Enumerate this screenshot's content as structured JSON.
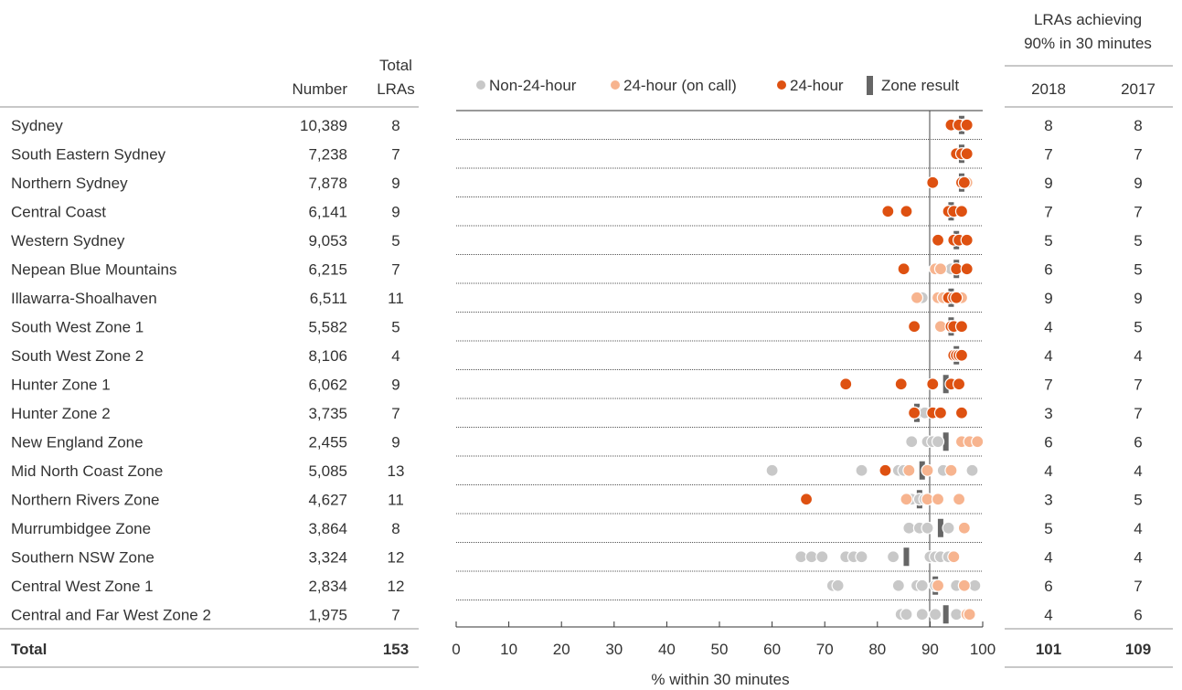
{
  "headers": {
    "number": "Number",
    "total_lras_line1": "Total",
    "total_lras_line2": "LRAs",
    "lras_achieving_line1": "LRAs achieving",
    "lras_achieving_line2": "90% in 30 minutes",
    "year_2018": "2018",
    "year_2017": "2017"
  },
  "legend": [
    {
      "label": "Non-24-hour",
      "color": "#c8c8c8",
      "marker": "dot"
    },
    {
      "label": "24-hour (on call)",
      "color": "#f7b48f",
      "marker": "dot"
    },
    {
      "label": "24-hour",
      "color": "#de5111",
      "marker": "dot"
    },
    {
      "label": "Zone result",
      "color": "#666666",
      "marker": "bar"
    }
  ],
  "rows": [
    {
      "name": "Sydney",
      "number": "10,389",
      "total_lras": "8",
      "y2018": "8",
      "y2017": "8"
    },
    {
      "name": "South Eastern Sydney",
      "number": "7,238",
      "total_lras": "7",
      "y2018": "7",
      "y2017": "7"
    },
    {
      "name": "Northern Sydney",
      "number": "7,878",
      "total_lras": "9",
      "y2018": "9",
      "y2017": "9"
    },
    {
      "name": "Central Coast",
      "number": "6,141",
      "total_lras": "9",
      "y2018": "7",
      "y2017": "7"
    },
    {
      "name": "Western Sydney",
      "number": "9,053",
      "total_lras": "5",
      "y2018": "5",
      "y2017": "5"
    },
    {
      "name": "Nepean Blue Mountains",
      "number": "6,215",
      "total_lras": "7",
      "y2018": "6",
      "y2017": "5"
    },
    {
      "name": "Illawarra-Shoalhaven",
      "number": "6,511",
      "total_lras": "11",
      "y2018": "9",
      "y2017": "9"
    },
    {
      "name": "South West Zone 1",
      "number": "5,582",
      "total_lras": "5",
      "y2018": "4",
      "y2017": "5"
    },
    {
      "name": "South West Zone 2",
      "number": "8,106",
      "total_lras": "4",
      "y2018": "4",
      "y2017": "4"
    },
    {
      "name": "Hunter Zone 1",
      "number": "6,062",
      "total_lras": "9",
      "y2018": "7",
      "y2017": "7"
    },
    {
      "name": "Hunter Zone 2",
      "number": "3,735",
      "total_lras": "7",
      "y2018": "3",
      "y2017": "7"
    },
    {
      "name": "New England Zone",
      "number": "2,455",
      "total_lras": "9",
      "y2018": "6",
      "y2017": "6"
    },
    {
      "name": "Mid North Coast Zone",
      "number": "5,085",
      "total_lras": "13",
      "y2018": "4",
      "y2017": "4"
    },
    {
      "name": "Northern Rivers Zone",
      "number": "4,627",
      "total_lras": "11",
      "y2018": "3",
      "y2017": "5"
    },
    {
      "name": "Murrumbidgee Zone",
      "number": "3,864",
      "total_lras": "8",
      "y2018": "5",
      "y2017": "4"
    },
    {
      "name": "Southern NSW Zone",
      "number": "3,324",
      "total_lras": "12",
      "y2018": "4",
      "y2017": "4"
    },
    {
      "name": "Central West Zone 1",
      "number": "2,834",
      "total_lras": "12",
      "y2018": "6",
      "y2017": "7"
    },
    {
      "name": "Central and Far West Zone 2",
      "number": "1,975",
      "total_lras": "7",
      "y2018": "4",
      "y2017": "6"
    }
  ],
  "total": {
    "name": "Total",
    "total_lras": "153",
    "y2018": "101",
    "y2017": "109"
  },
  "chart_data": {
    "type": "scatter",
    "xlabel": "% within 30 minutes",
    "xlim": [
      0,
      100
    ],
    "xticks": [
      0,
      10,
      20,
      30,
      40,
      50,
      60,
      70,
      80,
      90,
      100
    ],
    "reference_line": 90,
    "colors": {
      "non24": "#c8c8c8",
      "oncall": "#f7b48f",
      "h24": "#de5111",
      "zone": "#666666"
    },
    "rows": [
      {
        "non24": [],
        "oncall": [
          96.5
        ],
        "h24": [
          94,
          95.5,
          97
        ],
        "zone": 96
      },
      {
        "non24": [],
        "oncall": [
          96.5
        ],
        "h24": [
          95,
          96,
          97
        ],
        "zone": 96
      },
      {
        "non24": [],
        "oncall": [
          97
        ],
        "h24": [
          90.5,
          96,
          96.5
        ],
        "zone": 96
      },
      {
        "non24": [],
        "oncall": [],
        "h24": [
          82,
          85.5,
          93.5,
          94.5,
          96
        ],
        "zone": 94
      },
      {
        "non24": [],
        "oncall": [
          96
        ],
        "h24": [
          91.5,
          94.5,
          95.5,
          97
        ],
        "zone": 95
      },
      {
        "non24": [
          94
        ],
        "oncall": [
          91,
          92
        ],
        "h24": [
          85,
          95,
          97
        ],
        "zone": 95
      },
      {
        "non24": [
          88.5
        ],
        "oncall": [
          87.5,
          91.5,
          92.5,
          96
        ],
        "h24": [
          93.5,
          94.5,
          95
        ],
        "zone": 94
      },
      {
        "non24": [],
        "oncall": [
          92
        ],
        "h24": [
          87,
          94,
          94.5,
          96
        ],
        "zone": 94
      },
      {
        "non24": [],
        "oncall": [],
        "h24": [
          94.5,
          95,
          95.5,
          96
        ],
        "zone": 95
      },
      {
        "non24": [],
        "oncall": [],
        "h24": [
          74,
          84.5,
          90.5,
          94,
          95.5
        ],
        "zone": 93
      },
      {
        "non24": [
          88.5,
          89
        ],
        "oncall": [],
        "h24": [
          87,
          90.5,
          92,
          96
        ],
        "zone": 87.5
      },
      {
        "non24": [
          86.5,
          89.5,
          90.5,
          91.5
        ],
        "oncall": [
          96,
          97.5,
          99
        ],
        "h24": [],
        "zone": 93
      },
      {
        "non24": [
          60,
          77,
          84,
          85,
          92.5,
          98
        ],
        "oncall": [
          86,
          89.5,
          94
        ],
        "h24": [
          81.5
        ],
        "zone": 88.5
      },
      {
        "non24": [
          86.5,
          88,
          89
        ],
        "oncall": [
          85.5,
          89.5,
          91.5,
          95.5
        ],
        "h24": [
          66.5
        ],
        "zone": 88
      },
      {
        "non24": [
          86,
          88,
          89.5,
          93.5
        ],
        "oncall": [
          96.5
        ],
        "h24": [],
        "zone": 92
      },
      {
        "non24": [
          65.5,
          67.5,
          69.5,
          74,
          75.5,
          77,
          83,
          90,
          91,
          92,
          93.5
        ],
        "oncall": [
          94.5
        ],
        "h24": [],
        "zone": 85.5
      },
      {
        "non24": [
          71.5,
          72.5,
          84,
          87.5,
          88.5,
          91,
          95,
          98.5
        ],
        "oncall": [
          91.5,
          96.5
        ],
        "h24": [],
        "zone": 91
      },
      {
        "non24": [
          84.5,
          85.5,
          88.5,
          91,
          95
        ],
        "oncall": [
          97,
          97.5
        ],
        "h24": [],
        "zone": 93
      }
    ]
  }
}
